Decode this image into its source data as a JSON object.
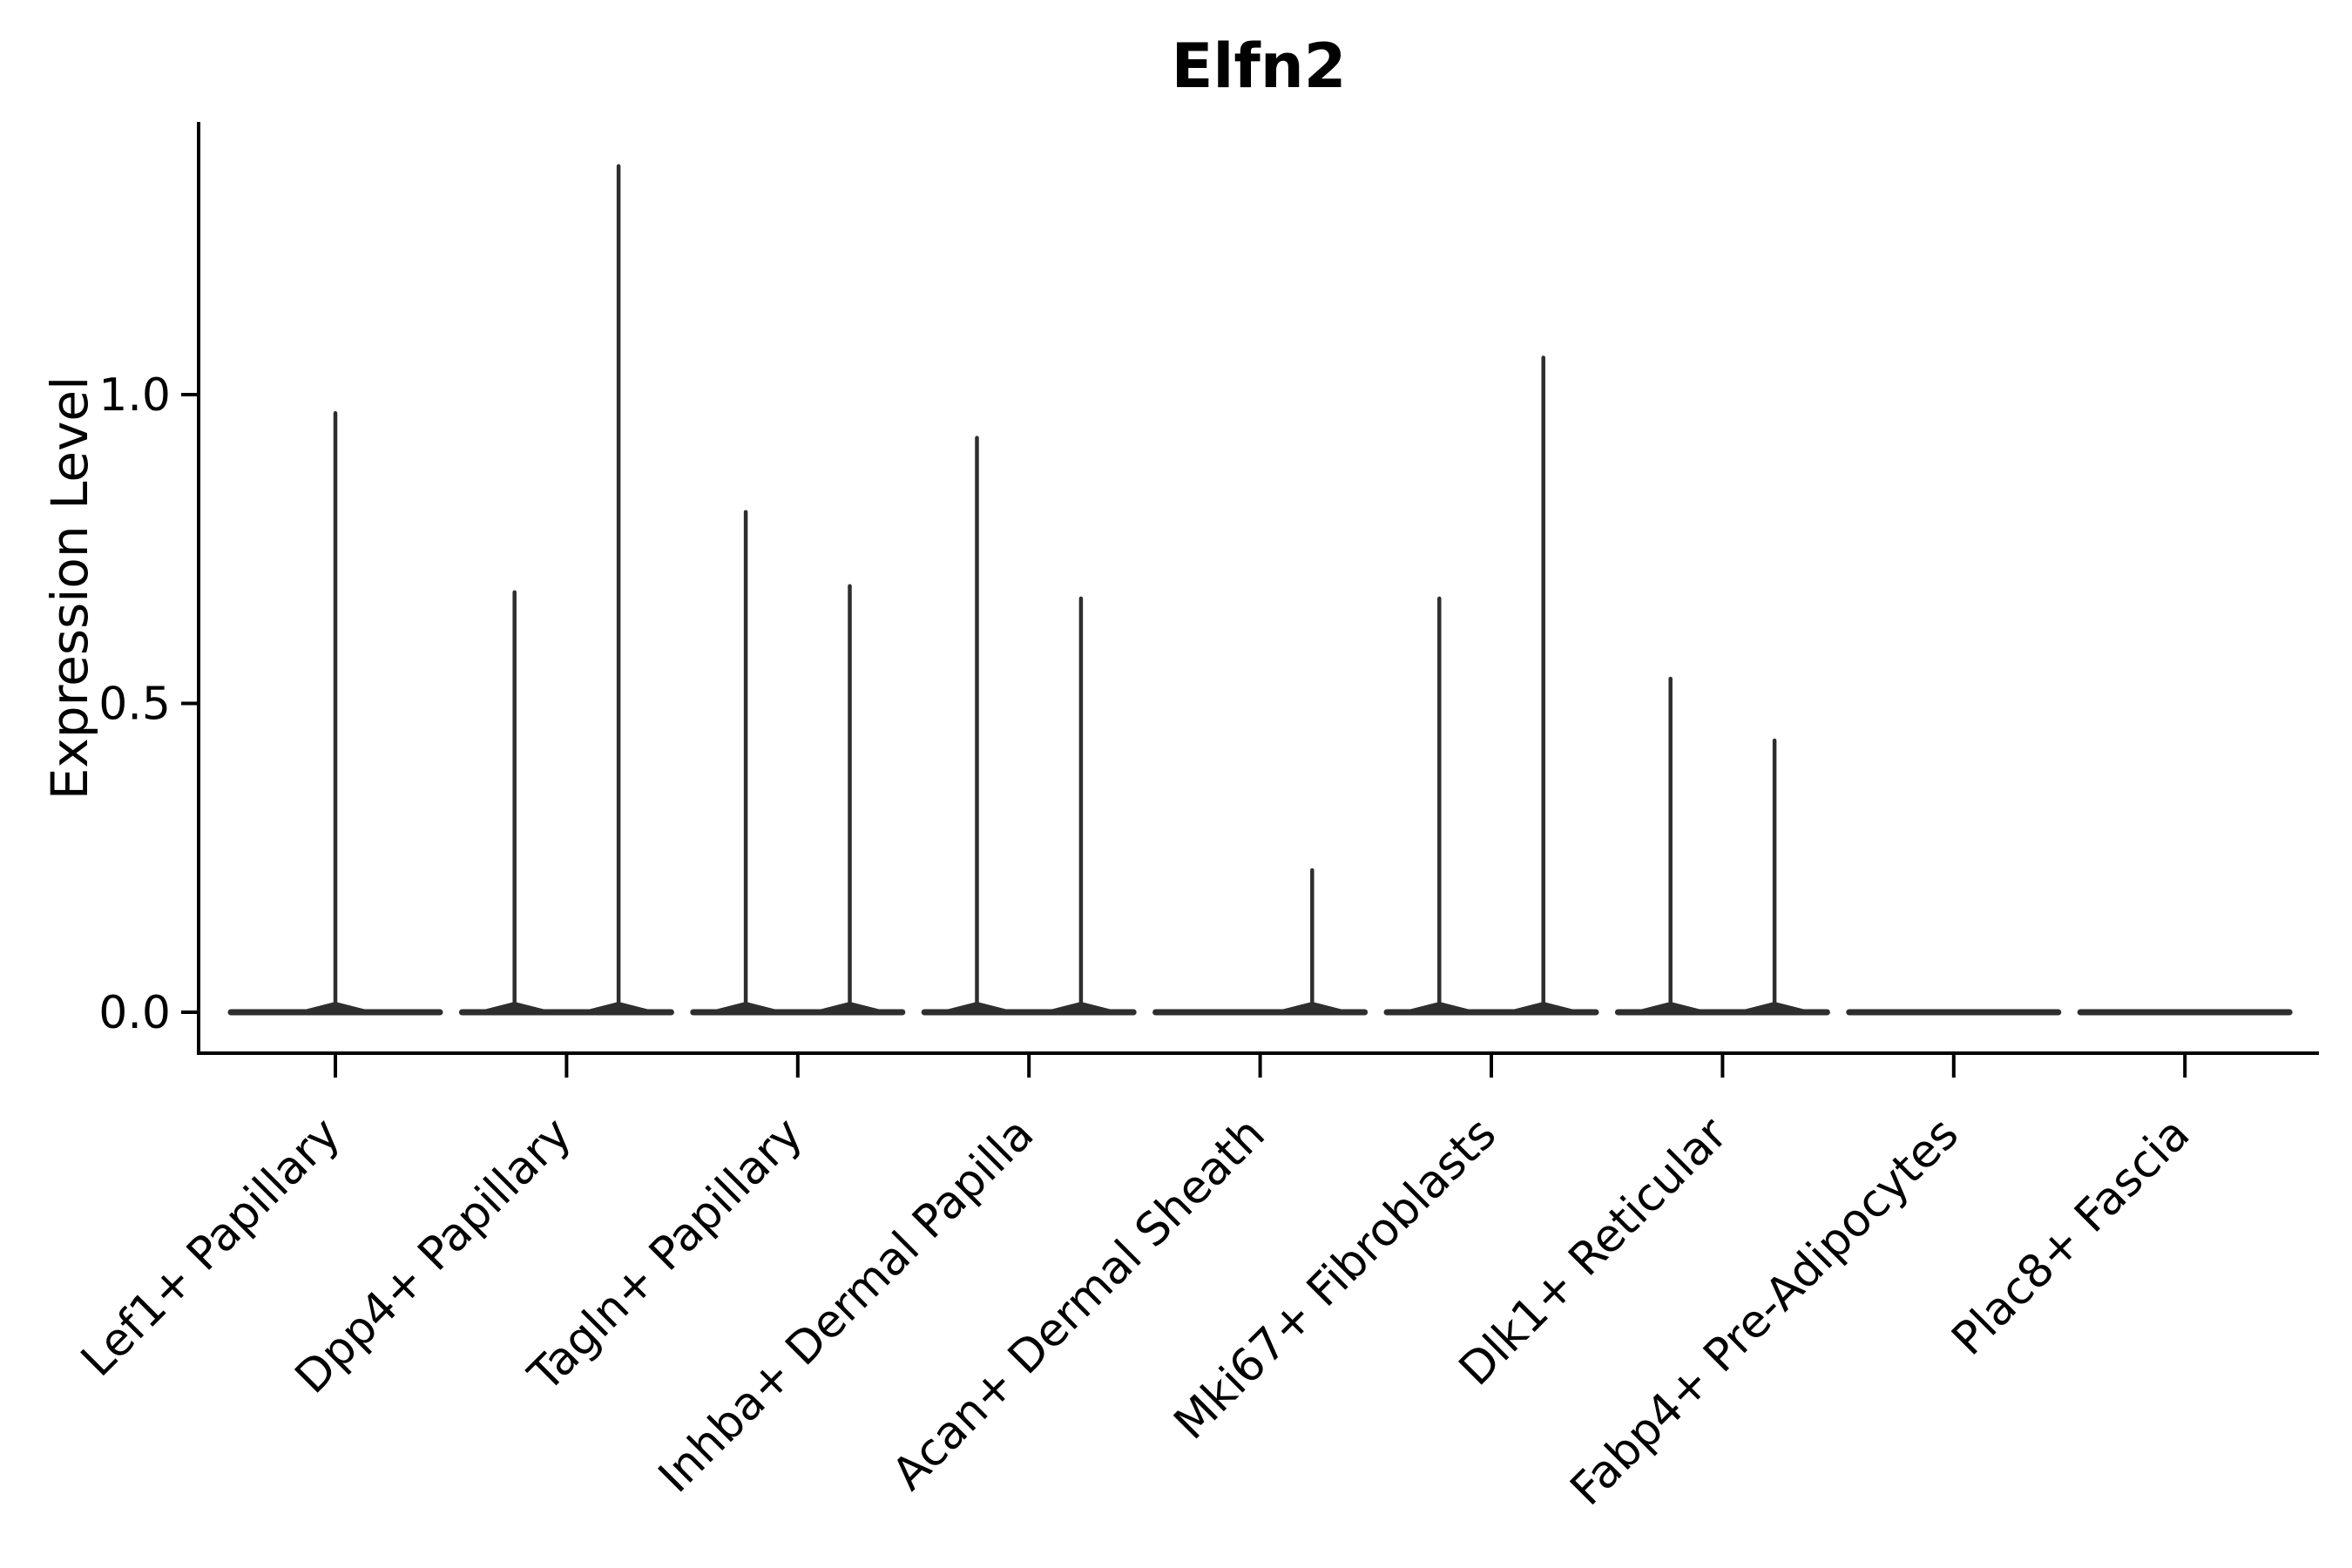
{
  "figure": {
    "background": "#ffffff"
  },
  "chart_data": {
    "type": "violin",
    "title": "Elfn2",
    "ylabel": "Expression Level",
    "xlabel": "",
    "yticks": [
      "0.0",
      "0.5",
      "1.0"
    ],
    "ylim": [
      -0.07,
      1.44
    ],
    "grid": false,
    "legend": "none",
    "violin_color": "#2e2e2e",
    "axis_color": "#000000",
    "categories": [
      "Lef1+ Papillary",
      "Dpp4+ Papillary",
      "Tagln+ Papillary",
      "Inhba+ Dermal Papilla",
      "Acan+ Dermal Sheath",
      "Mki67+ Fibroblasts",
      "Dlk1+ Reticular",
      "Fabp4+ Pre-Adipocytes",
      "Plac8+ Fascia"
    ],
    "violins": [
      {
        "category": "Lef1+ Papillary",
        "spikes": [
          {
            "offset": 0.0,
            "max": 0.97
          }
        ]
      },
      {
        "category": "Dpp4+ Papillary",
        "spikes": [
          {
            "offset": -0.225,
            "max": 0.68
          },
          {
            "offset": 0.225,
            "max": 1.37
          }
        ]
      },
      {
        "category": "Tagln+ Papillary",
        "spikes": [
          {
            "offset": -0.225,
            "max": 0.81
          },
          {
            "offset": 0.225,
            "max": 0.69
          }
        ]
      },
      {
        "category": "Inhba+ Dermal Papilla",
        "spikes": [
          {
            "offset": -0.225,
            "max": 0.93
          },
          {
            "offset": 0.225,
            "max": 0.67
          }
        ]
      },
      {
        "category": "Acan+ Dermal Sheath",
        "spikes": [
          {
            "offset": 0.225,
            "max": 0.23
          }
        ]
      },
      {
        "category": "Mki67+ Fibroblasts",
        "spikes": [
          {
            "offset": -0.225,
            "max": 0.67
          },
          {
            "offset": 0.225,
            "max": 1.06
          }
        ]
      },
      {
        "category": "Dlk1+ Reticular",
        "spikes": [
          {
            "offset": -0.225,
            "max": 0.54
          },
          {
            "offset": 0.225,
            "max": 0.44
          }
        ]
      },
      {
        "category": "Fabp4+ Pre-Adipocytes",
        "spikes": []
      },
      {
        "category": "Plac8+ Fascia",
        "spikes": []
      }
    ]
  }
}
